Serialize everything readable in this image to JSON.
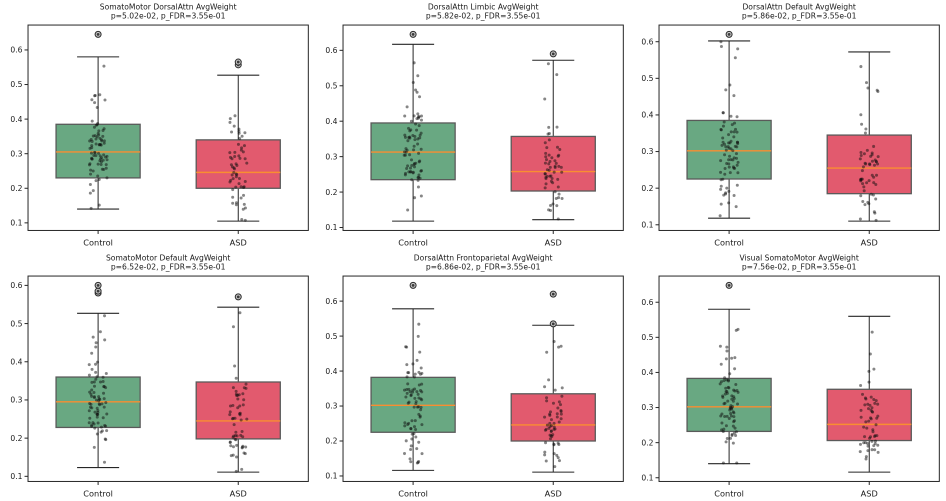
{
  "figure": {
    "background": "#ffffff",
    "control_box_color": "#69a882",
    "asd_box_color": "#e25a6e",
    "median_color": "#f98e31",
    "box_edge_color": "#5a5a5a",
    "whisker_color": "#262626",
    "point_color": "#0d0d0d",
    "outlier_fill": "#c4c4c4",
    "outlier_stroke": "#2b2b2b"
  },
  "chart_data": [
    {
      "type": "box",
      "title": "SomatoMotor DorsalAttn AvgWeight",
      "subtitle": "p=5.02e-02, p_FDR=3.55e-01",
      "categories": [
        "Control",
        "ASD"
      ],
      "yticks": [
        0.1,
        0.2,
        0.3,
        0.4,
        0.5,
        0.6
      ],
      "series": [
        {
          "name": "Control",
          "whisker_low": 0.14,
          "q1": 0.23,
          "median": 0.305,
          "q3": 0.385,
          "whisker_high": 0.58,
          "outliers": [
            0.645
          ],
          "n_points": 78
        },
        {
          "name": "ASD",
          "whisker_low": 0.105,
          "q1": 0.2,
          "median": 0.246,
          "q3": 0.34,
          "whisker_high": 0.527,
          "outliers": [
            0.557,
            0.565
          ],
          "n_points": 58
        }
      ]
    },
    {
      "type": "box",
      "title": "DorsalAttn Limbic AvgWeight",
      "subtitle": "p=5.82e-02, p_FDR=3.55e-01",
      "categories": [
        "Control",
        "ASD"
      ],
      "yticks": [
        0.1,
        0.2,
        0.3,
        0.4,
        0.5,
        0.6
      ],
      "series": [
        {
          "name": "Control",
          "whisker_low": 0.118,
          "q1": 0.235,
          "median": 0.313,
          "q3": 0.395,
          "whisker_high": 0.617,
          "outliers": [
            0.645
          ],
          "n_points": 78
        },
        {
          "name": "ASD",
          "whisker_low": 0.122,
          "q1": 0.203,
          "median": 0.258,
          "q3": 0.357,
          "whisker_high": 0.572,
          "outliers": [
            0.59
          ],
          "n_points": 58
        }
      ]
    },
    {
      "type": "box",
      "title": "DorsalAttn Default AvgWeight",
      "subtitle": "p=5.86e-02, p_FDR=3.55e-01",
      "categories": [
        "Control",
        "ASD"
      ],
      "yticks": [
        0.1,
        0.2,
        0.3,
        0.4,
        0.5,
        0.6
      ],
      "series": [
        {
          "name": "Control",
          "whisker_low": 0.118,
          "q1": 0.225,
          "median": 0.302,
          "q3": 0.385,
          "whisker_high": 0.602,
          "outliers": [
            0.62
          ],
          "n_points": 78
        },
        {
          "name": "ASD",
          "whisker_low": 0.11,
          "q1": 0.185,
          "median": 0.255,
          "q3": 0.345,
          "whisker_high": 0.572,
          "outliers": [],
          "n_points": 58
        }
      ]
    },
    {
      "type": "box",
      "title": "SomatoMotor Default AvgWeight",
      "subtitle": "p=6.52e-02, p_FDR=3.55e-01",
      "categories": [
        "Control",
        "ASD"
      ],
      "yticks": [
        0.1,
        0.2,
        0.3,
        0.4,
        0.5,
        0.6
      ],
      "series": [
        {
          "name": "Control",
          "whisker_low": 0.123,
          "q1": 0.228,
          "median": 0.295,
          "q3": 0.36,
          "whisker_high": 0.527,
          "outliers": [
            0.58,
            0.585,
            0.6
          ],
          "n_points": 78
        },
        {
          "name": "ASD",
          "whisker_low": 0.111,
          "q1": 0.198,
          "median": 0.245,
          "q3": 0.347,
          "whisker_high": 0.543,
          "outliers": [
            0.57
          ],
          "n_points": 58
        }
      ]
    },
    {
      "type": "box",
      "title": "DorsalAttn Frontoparietal AvgWeight",
      "subtitle": "p=6.86e-02, p_FDR=3.55e-01",
      "categories": [
        "Control",
        "ASD"
      ],
      "yticks": [
        0.1,
        0.2,
        0.3,
        0.4,
        0.5,
        0.6
      ],
      "series": [
        {
          "name": "Control",
          "whisker_low": 0.116,
          "q1": 0.225,
          "median": 0.302,
          "q3": 0.382,
          "whisker_high": 0.578,
          "outliers": [
            0.645
          ],
          "n_points": 78
        },
        {
          "name": "ASD",
          "whisker_low": 0.111,
          "q1": 0.2,
          "median": 0.246,
          "q3": 0.335,
          "whisker_high": 0.531,
          "outliers": [
            0.535,
            0.62
          ],
          "n_points": 58
        }
      ]
    },
    {
      "type": "box",
      "title": "Visual SomatoMotor AvgWeight",
      "subtitle": "p=7.56e-02, p_FDR=3.55e-01",
      "categories": [
        "Control",
        "ASD"
      ],
      "yticks": [
        0.1,
        0.2,
        0.3,
        0.4,
        0.5,
        0.6
      ],
      "series": [
        {
          "name": "Control",
          "whisker_low": 0.14,
          "q1": 0.232,
          "median": 0.302,
          "q3": 0.383,
          "whisker_high": 0.58,
          "outliers": [
            0.648
          ],
          "n_points": 78
        },
        {
          "name": "ASD",
          "whisker_low": 0.116,
          "q1": 0.206,
          "median": 0.252,
          "q3": 0.352,
          "whisker_high": 0.56,
          "outliers": [],
          "n_points": 58
        }
      ]
    }
  ]
}
